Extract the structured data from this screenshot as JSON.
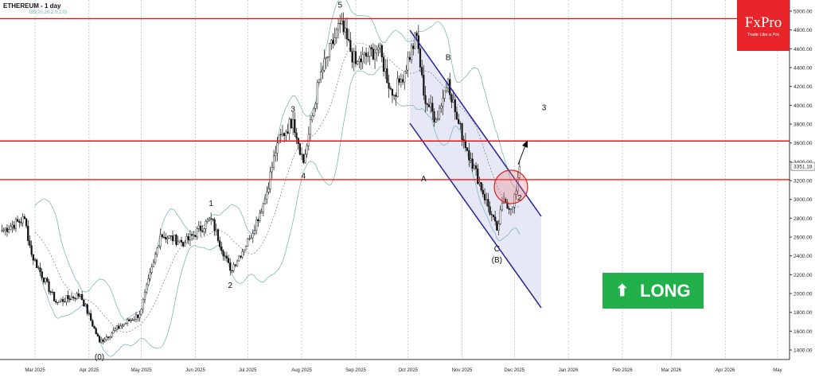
{
  "header": {
    "title": "ETHEREUM - 1 day",
    "indicator": "BB(20,20,2.0,2.0)"
  },
  "logo": {
    "brand": "FxPro",
    "tagline": "Trade Like a Pro"
  },
  "signal": {
    "label": "LONG",
    "icon": "arrow-up-icon",
    "color": "#22b04b"
  },
  "colors": {
    "levels": "#ff0000",
    "channel": "#22229a",
    "channel_fill": "#e6e8f5",
    "bands": "#7fb8b8",
    "logo": "#e8242b"
  },
  "chart_data": {
    "type": "line",
    "title": "ETHEREUM - 1 day",
    "price_axis": {
      "range": [
        1400,
        5000
      ],
      "ticks": [
        "5000.00",
        "4800.00",
        "4600.00",
        "4400.00",
        "4200.00",
        "4000.00",
        "3800.00",
        "3600.00",
        "3400.00",
        "3200.00",
        "3000.00",
        "2800.00",
        "2600.00",
        "2400.00",
        "2200.00",
        "2000.00",
        "1800.00",
        "1600.00",
        "1400.00"
      ]
    },
    "time_axis": {
      "ticks": [
        "Mar 2025",
        "Apr 2025",
        "May 2025",
        "Jun 2025",
        "Jul 2025",
        "Aug 2025",
        "Sep 2025",
        "Oct 2025",
        "Nov 2025",
        "Dec 2025",
        "Jan 2026",
        "Feb 2026",
        "Mar 2026",
        "Apr 2026",
        "May"
      ]
    },
    "current_price": "3351.18",
    "levels": [
      4920,
      3620,
      3210
    ],
    "closes": [
      [
        "2025-02-10",
        2668
      ],
      [
        "2025-02-23",
        2795
      ],
      [
        "2025-02-27",
        2414
      ],
      [
        "2025-03-13",
        1907
      ],
      [
        "2025-03-27",
        1990
      ],
      [
        "2025-04-07",
        1485
      ],
      [
        "2025-04-19",
        1654
      ],
      [
        "2025-04-30",
        1780
      ],
      [
        "2025-05-08",
        2330
      ],
      [
        "2025-05-12",
        2625
      ],
      [
        "2025-05-26",
        2540
      ],
      [
        "2025-06-10",
        2795
      ],
      [
        "2025-06-21",
        2245
      ],
      [
        "2025-07-02",
        2583
      ],
      [
        "2025-07-11",
        3005
      ],
      [
        "2025-07-18",
        3600
      ],
      [
        "2025-07-27",
        3850
      ],
      [
        "2025-08-02",
        3390
      ],
      [
        "2025-08-11",
        4275
      ],
      [
        "2025-08-23",
        4865
      ],
      [
        "2025-09-01",
        4440
      ],
      [
        "2025-09-14",
        4610
      ],
      [
        "2025-09-22",
        4105
      ],
      [
        "2025-09-27",
        4275
      ],
      [
        "2025-10-06",
        4740
      ],
      [
        "2025-10-10",
        4105
      ],
      [
        "2025-10-17",
        3850
      ],
      [
        "2025-10-24",
        4275
      ],
      [
        "2025-10-29",
        3850
      ],
      [
        "2025-11-06",
        3430
      ],
      [
        "2025-11-21",
        2670
      ],
      [
        "2025-11-25",
        3005
      ],
      [
        "2025-11-29",
        2900
      ],
      [
        "2025-12-02",
        3090
      ],
      [
        "2025-12-04",
        3351
      ]
    ],
    "wave_labels": [
      {
        "text": "(0)",
        "date": "2025-04-07",
        "price": 1300
      },
      {
        "text": "1",
        "date": "2025-06-10",
        "price": 2930
      },
      {
        "text": "2",
        "date": "2025-06-21",
        "price": 2060
      },
      {
        "text": "3",
        "date": "2025-07-27",
        "price": 3930
      },
      {
        "text": "4",
        "date": "2025-08-02",
        "price": 3220
      },
      {
        "text": "5",
        "date": "2025-08-23",
        "price": 5040
      },
      {
        "text": "A",
        "date": "2025-10-10",
        "price": 3190
      },
      {
        "text": "B",
        "date": "2025-10-24",
        "price": 4480
      },
      {
        "text": "C",
        "date": "2025-11-21",
        "price": 2450
      },
      {
        "text": "(B)",
        "date": "2025-11-21",
        "price": 2330
      },
      {
        "text": "2",
        "date": "2025-12-04",
        "price": 2990
      },
      {
        "text": "3",
        "date": "2025-12-18",
        "price": 3950
      }
    ]
  }
}
